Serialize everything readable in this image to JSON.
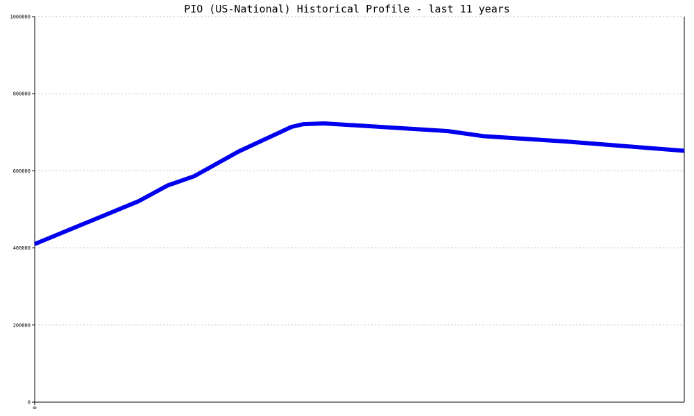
{
  "chart_data": {
    "type": "line",
    "title": "PIO (US-National) Historical Profile - last 11 years",
    "xlabel": "",
    "ylabel": "",
    "x_tick_labels": [
      "0"
    ],
    "ylim": [
      0,
      1000000
    ],
    "y_ticks": [
      0,
      200000,
      400000,
      600000,
      800000,
      1000000
    ],
    "y_tick_labels": [
      "0",
      "200000",
      "400000",
      "600000",
      "800000",
      "1000000"
    ],
    "grid": true,
    "series": [
      {
        "color": "#0000ee",
        "x": [
          0,
          1.77,
          2.25,
          2.7,
          3.45,
          4.35,
          4.55,
          4.9,
          7.0,
          7.6,
          9.0,
          11.0
        ],
        "values": [
          410000,
          522000,
          562000,
          586000,
          650000,
          714000,
          721000,
          723000,
          703000,
          690000,
          676000,
          652000
        ]
      }
    ],
    "xlim": [
      0,
      11
    ]
  }
}
